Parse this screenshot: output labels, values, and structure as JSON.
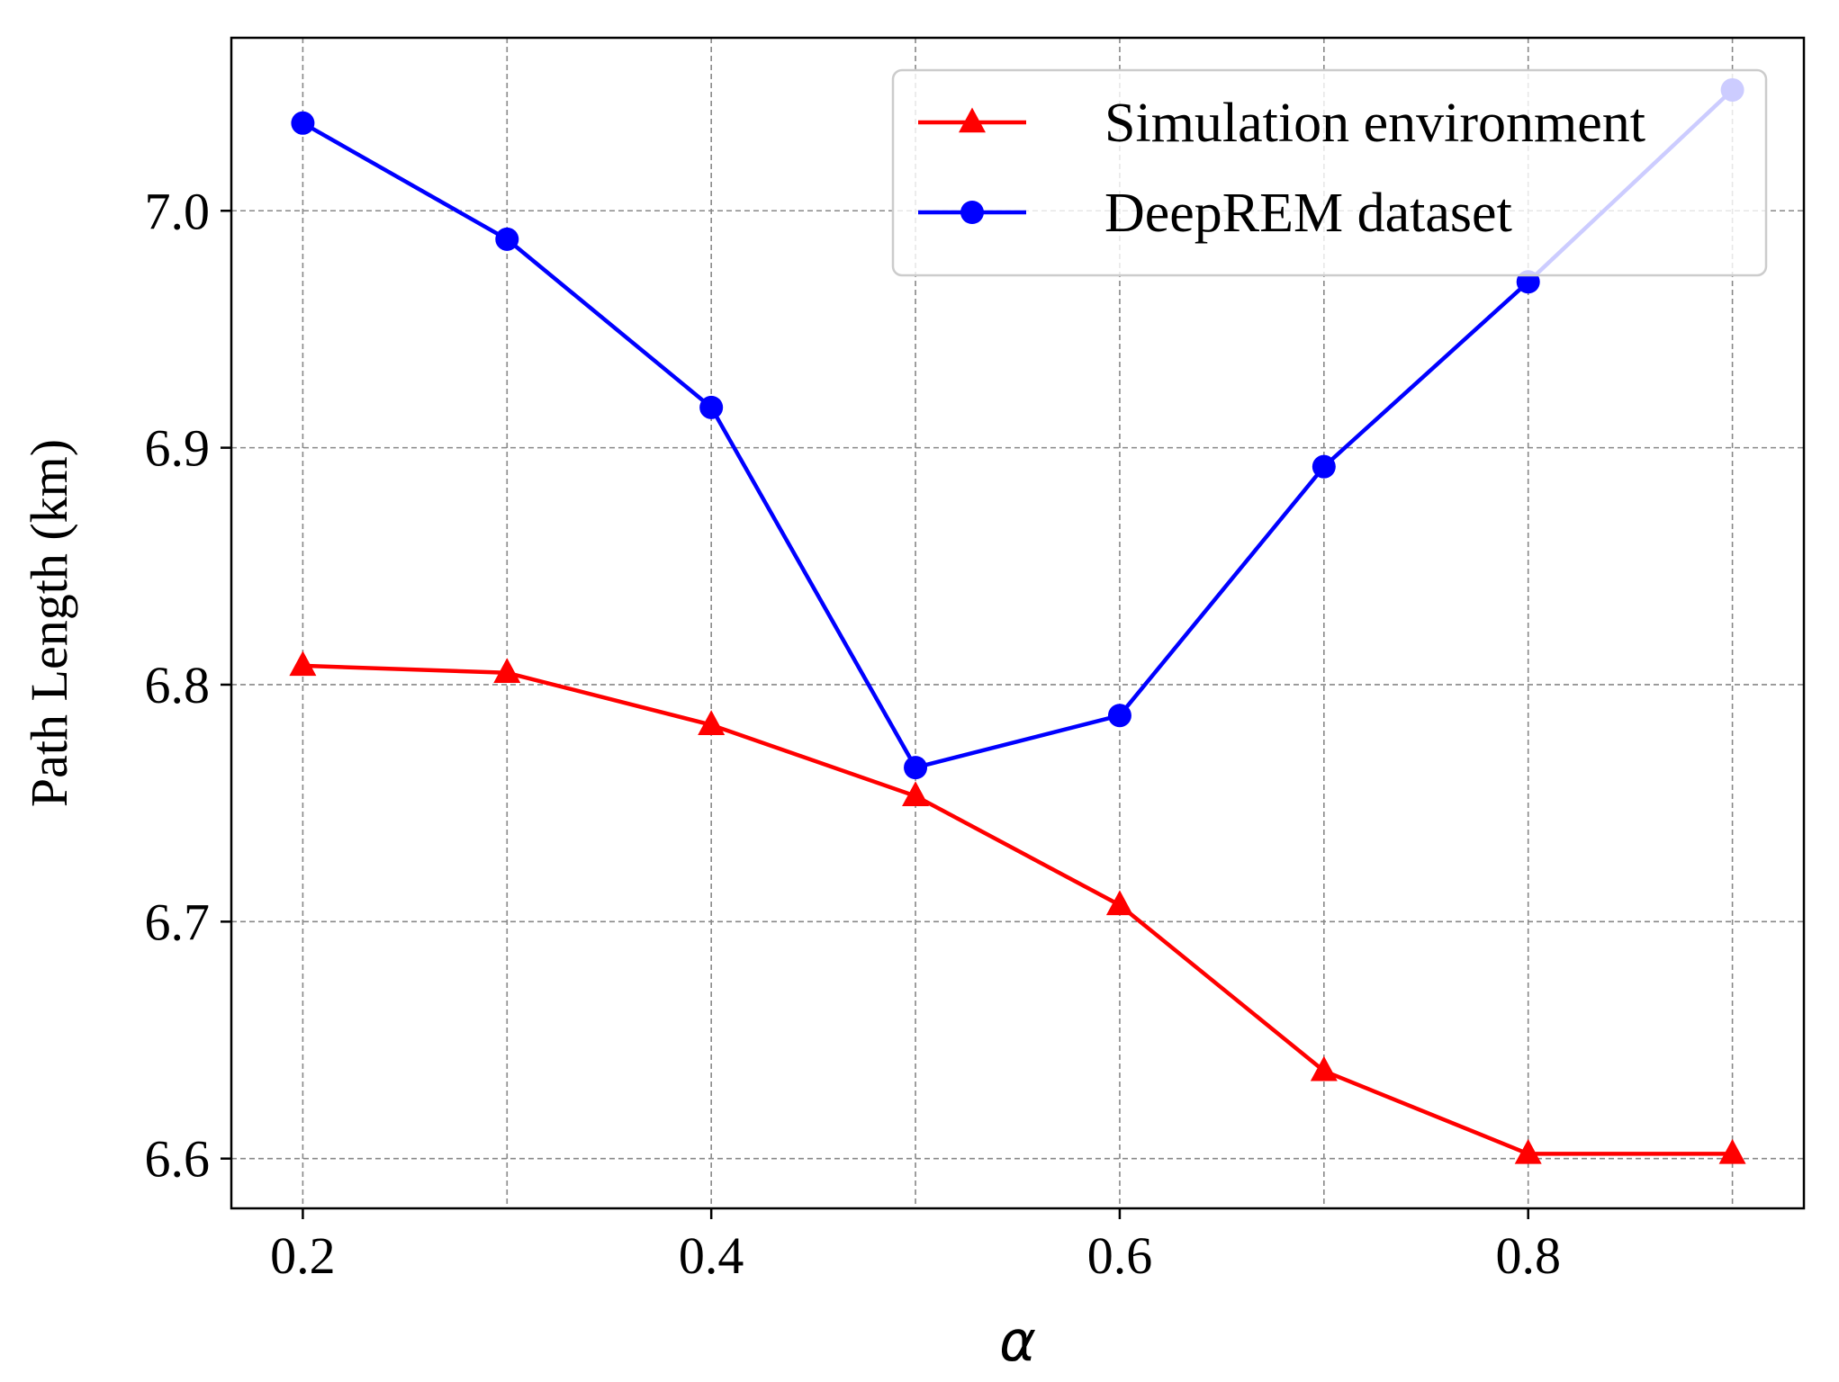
{
  "chart_data": {
    "type": "line",
    "title": "",
    "xlabel": "α",
    "ylabel": "Path Length (km)",
    "x": [
      0.2,
      0.3,
      0.4,
      0.5,
      0.6,
      0.7,
      0.8,
      0.9
    ],
    "xlim": [
      0.165,
      0.935
    ],
    "ylim": [
      6.579,
      7.073
    ],
    "xticks": [
      0.2,
      0.4,
      0.6,
      0.8
    ],
    "xtick_labels": [
      "0.2",
      "0.4",
      "0.6",
      "0.8"
    ],
    "xgrid": [
      0.2,
      0.3,
      0.4,
      0.5,
      0.6,
      0.7,
      0.8,
      0.9
    ],
    "yticks": [
      6.6,
      6.7,
      6.8,
      6.9,
      7.0
    ],
    "ytick_labels": [
      "6.6",
      "6.7",
      "6.8",
      "6.9",
      "7.0"
    ],
    "grid": true,
    "legend_position": "top-right",
    "series": [
      {
        "name": "Simulation environment",
        "color": "#ff0000",
        "marker": "triangle",
        "values": [
          6.808,
          6.805,
          6.783,
          6.753,
          6.707,
          6.637,
          6.602,
          6.602
        ]
      },
      {
        "name": "DeepREM dataset",
        "color": "#0000ff",
        "marker": "circle",
        "values": [
          7.037,
          6.988,
          6.917,
          6.765,
          6.787,
          6.892,
          6.97,
          7.051
        ]
      }
    ]
  }
}
